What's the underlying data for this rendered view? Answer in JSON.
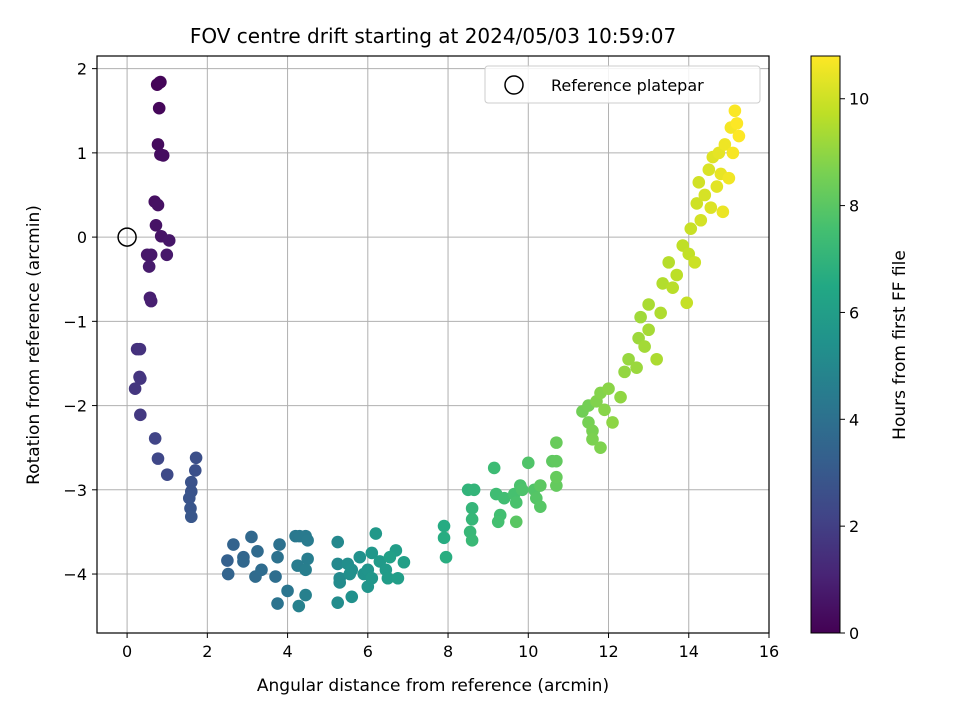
{
  "chart_data": {
    "type": "scatter",
    "title": "FOV centre drift starting at 2024/05/03 10:59:07",
    "xlabel": "Angular distance from reference (arcmin)",
    "ylabel": "Rotation from reference (arcmin)",
    "xlim": [
      -0.75,
      16
    ],
    "ylim": [
      -4.7,
      2.15
    ],
    "xticks": [
      "0",
      "2",
      "4",
      "6",
      "8",
      "10",
      "12",
      "14",
      "16"
    ],
    "yticks": [
      "−4",
      "−3",
      "−2",
      "−1",
      "0",
      "1",
      "2"
    ],
    "grid": true,
    "legend": {
      "position": "top-right",
      "entries": [
        "Reference platepar"
      ]
    },
    "reference_point": {
      "x": 0,
      "y": 0
    },
    "colorbar": {
      "label": "Hours from first FF file",
      "colormap": "viridis",
      "range": [
        0,
        10.8
      ],
      "ticks": [
        "0",
        "2",
        "4",
        "6",
        "8",
        "10"
      ]
    },
    "points": [
      [
        0.8,
        1.83,
        0.05
      ],
      [
        0.75,
        1.81,
        0.1
      ],
      [
        0.83,
        1.84,
        0.12
      ],
      [
        0.8,
        1.53,
        0.2
      ],
      [
        0.77,
        1.1,
        0.3
      ],
      [
        0.83,
        0.98,
        0.35
      ],
      [
        0.9,
        0.97,
        0.38
      ],
      [
        0.69,
        0.42,
        0.45
      ],
      [
        0.77,
        0.38,
        0.5
      ],
      [
        0.72,
        0.14,
        0.55
      ],
      [
        0.85,
        0.01,
        0.6
      ],
      [
        1.05,
        -0.04,
        0.65
      ],
      [
        0.5,
        -0.21,
        0.7
      ],
      [
        0.6,
        -0.21,
        0.72
      ],
      [
        0.99,
        -0.21,
        0.75
      ],
      [
        0.55,
        -0.35,
        0.8
      ],
      [
        0.57,
        -0.72,
        0.9
      ],
      [
        0.6,
        -0.76,
        0.95
      ],
      [
        0.25,
        -1.33,
        1.5
      ],
      [
        0.32,
        -1.33,
        1.55
      ],
      [
        0.31,
        -1.66,
        1.6
      ],
      [
        0.33,
        -1.68,
        1.65
      ],
      [
        0.2,
        -1.8,
        1.7
      ],
      [
        0.33,
        -2.11,
        1.8
      ],
      [
        0.7,
        -2.39,
        2.2
      ],
      [
        0.77,
        -2.63,
        2.3
      ],
      [
        1.0,
        -2.82,
        2.4
      ],
      [
        1.72,
        -2.62,
        2.6
      ],
      [
        1.7,
        -2.77,
        2.65
      ],
      [
        1.6,
        -2.91,
        2.7
      ],
      [
        1.6,
        -3.02,
        2.75
      ],
      [
        1.55,
        -3.1,
        2.8
      ],
      [
        1.58,
        -3.22,
        2.85
      ],
      [
        1.6,
        -3.32,
        2.9
      ],
      [
        2.5,
        -3.84,
        3.3
      ],
      [
        2.65,
        -3.65,
        3.4
      ],
      [
        2.52,
        -4.0,
        3.45
      ],
      [
        2.9,
        -3.8,
        3.55
      ],
      [
        2.9,
        -3.85,
        3.6
      ],
      [
        3.1,
        -3.56,
        3.65
      ],
      [
        3.25,
        -3.73,
        3.7
      ],
      [
        3.2,
        -4.03,
        3.75
      ],
      [
        3.35,
        -3.95,
        3.8
      ],
      [
        3.7,
        -4.03,
        3.9
      ],
      [
        3.8,
        -3.65,
        4.0
      ],
      [
        3.75,
        -3.8,
        4.05
      ],
      [
        3.75,
        -4.35,
        4.1
      ],
      [
        4.0,
        -4.2,
        4.2
      ],
      [
        4.2,
        -3.55,
        4.3
      ],
      [
        4.3,
        -3.55,
        4.35
      ],
      [
        4.45,
        -3.55,
        4.4
      ],
      [
        4.5,
        -3.6,
        4.45
      ],
      [
        4.25,
        -3.9,
        4.5
      ],
      [
        4.5,
        -3.82,
        4.55
      ],
      [
        4.45,
        -3.95,
        4.6
      ],
      [
        4.45,
        -4.25,
        4.65
      ],
      [
        4.28,
        -4.38,
        4.7
      ],
      [
        5.25,
        -3.62,
        5.0
      ],
      [
        5.25,
        -3.88,
        5.05
      ],
      [
        5.3,
        -4.05,
        5.1
      ],
      [
        5.3,
        -4.1,
        5.15
      ],
      [
        5.25,
        -4.34,
        5.2
      ],
      [
        5.5,
        -3.88,
        5.25
      ],
      [
        5.55,
        -4.0,
        5.3
      ],
      [
        5.6,
        -3.95,
        5.35
      ],
      [
        5.6,
        -4.27,
        5.4
      ],
      [
        5.8,
        -3.8,
        5.45
      ],
      [
        5.9,
        -4.0,
        5.5
      ],
      [
        6.0,
        -3.95,
        5.55
      ],
      [
        6.0,
        -4.15,
        5.6
      ],
      [
        6.1,
        -4.05,
        5.65
      ],
      [
        6.1,
        -3.75,
        5.7
      ],
      [
        6.2,
        -3.52,
        5.75
      ],
      [
        6.3,
        -3.85,
        5.8
      ],
      [
        6.45,
        -3.95,
        5.85
      ],
      [
        6.5,
        -4.05,
        5.9
      ],
      [
        6.7,
        -3.72,
        5.95
      ],
      [
        6.75,
        -4.05,
        6.0
      ],
      [
        6.9,
        -3.86,
        6.05
      ],
      [
        6.55,
        -3.8,
        6.1
      ],
      [
        7.9,
        -3.43,
        6.6
      ],
      [
        7.9,
        -3.57,
        6.65
      ],
      [
        7.95,
        -3.8,
        6.7
      ],
      [
        8.5,
        -3.0,
        7.0
      ],
      [
        8.65,
        -3.0,
        7.05
      ],
      [
        8.6,
        -3.22,
        7.1
      ],
      [
        8.6,
        -3.35,
        7.15
      ],
      [
        8.55,
        -3.5,
        7.2
      ],
      [
        8.6,
        -3.6,
        7.25
      ],
      [
        9.15,
        -2.74,
        7.35
      ],
      [
        9.2,
        -3.05,
        7.4
      ],
      [
        9.4,
        -3.1,
        7.45
      ],
      [
        9.3,
        -3.3,
        7.5
      ],
      [
        9.25,
        -3.38,
        7.55
      ],
      [
        9.65,
        -3.05,
        7.6
      ],
      [
        9.7,
        -3.15,
        7.65
      ],
      [
        9.8,
        -2.95,
        7.7
      ],
      [
        9.85,
        -3.0,
        7.75
      ],
      [
        10.0,
        -2.68,
        7.8
      ],
      [
        10.15,
        -3.0,
        7.85
      ],
      [
        10.2,
        -3.1,
        7.9
      ],
      [
        10.3,
        -3.2,
        7.95
      ],
      [
        9.7,
        -3.38,
        8.0
      ],
      [
        10.3,
        -2.95,
        8.05
      ],
      [
        10.6,
        -2.66,
        8.1
      ],
      [
        10.7,
        -2.66,
        8.15
      ],
      [
        10.7,
        -2.95,
        8.2
      ],
      [
        10.7,
        -2.85,
        8.25
      ],
      [
        10.7,
        -2.44,
        8.3
      ],
      [
        11.35,
        -2.07,
        8.45
      ],
      [
        11.5,
        -2.0,
        8.5
      ],
      [
        11.5,
        -2.2,
        8.55
      ],
      [
        11.6,
        -2.3,
        8.6
      ],
      [
        11.6,
        -2.4,
        8.65
      ],
      [
        11.8,
        -2.5,
        8.7
      ],
      [
        11.7,
        -1.95,
        8.75
      ],
      [
        11.8,
        -1.85,
        8.8
      ],
      [
        11.9,
        -2.05,
        8.85
      ],
      [
        12.0,
        -1.8,
        8.9
      ],
      [
        12.1,
        -2.2,
        8.95
      ],
      [
        12.3,
        -1.9,
        9.0
      ],
      [
        12.4,
        -1.6,
        9.05
      ],
      [
        12.5,
        -1.45,
        9.1
      ],
      [
        12.7,
        -1.55,
        9.15
      ],
      [
        12.75,
        -1.2,
        9.2
      ],
      [
        12.8,
        -0.95,
        9.25
      ],
      [
        12.9,
        -1.3,
        9.3
      ],
      [
        13.0,
        -1.1,
        9.35
      ],
      [
        13.0,
        -0.8,
        9.4
      ],
      [
        13.2,
        -1.45,
        9.45
      ],
      [
        13.3,
        -0.9,
        9.5
      ],
      [
        13.35,
        -0.55,
        9.55
      ],
      [
        13.5,
        -0.3,
        9.6
      ],
      [
        13.6,
        -0.6,
        9.65
      ],
      [
        13.7,
        -0.45,
        9.7
      ],
      [
        13.85,
        -0.1,
        9.75
      ],
      [
        14.0,
        -0.2,
        9.8
      ],
      [
        13.95,
        -0.78,
        9.85
      ],
      [
        14.05,
        0.1,
        9.9
      ],
      [
        14.15,
        -0.3,
        9.95
      ],
      [
        14.2,
        0.4,
        10.0
      ],
      [
        14.25,
        0.65,
        10.05
      ],
      [
        14.3,
        0.2,
        10.1
      ],
      [
        14.4,
        0.5,
        10.15
      ],
      [
        14.5,
        0.8,
        10.2
      ],
      [
        14.55,
        0.35,
        10.25
      ],
      [
        14.6,
        0.95,
        10.3
      ],
      [
        14.7,
        0.6,
        10.35
      ],
      [
        14.75,
        1.0,
        10.4
      ],
      [
        14.8,
        0.75,
        10.45
      ],
      [
        14.85,
        0.3,
        10.5
      ],
      [
        14.9,
        1.1,
        10.55
      ],
      [
        15.0,
        0.7,
        10.6
      ],
      [
        15.05,
        1.3,
        10.65
      ],
      [
        15.1,
        1.0,
        10.7
      ],
      [
        15.15,
        1.5,
        10.75
      ],
      [
        15.2,
        1.35,
        10.78
      ],
      [
        15.25,
        1.2,
        10.8
      ]
    ]
  }
}
